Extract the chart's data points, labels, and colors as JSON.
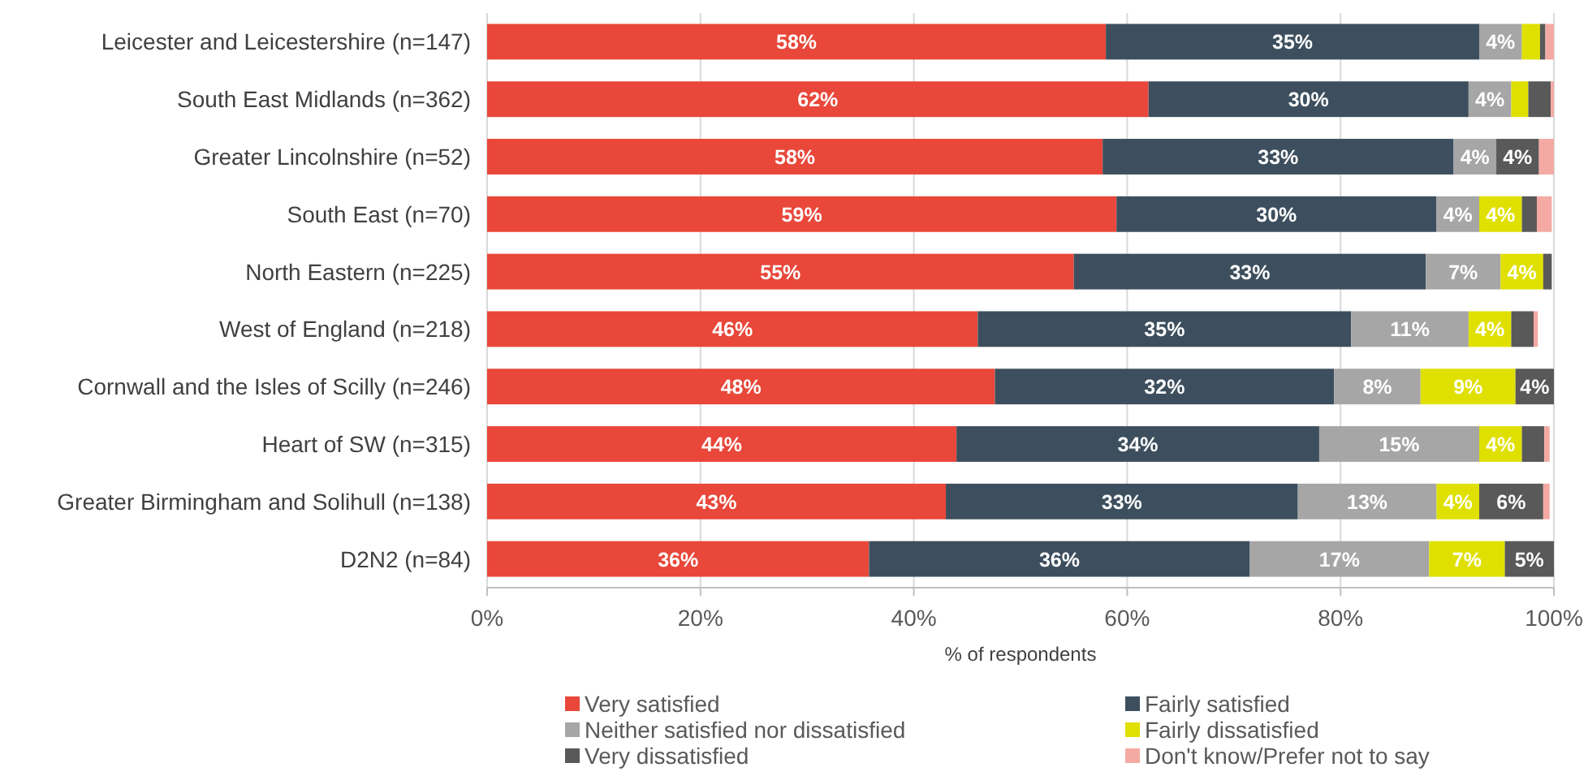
{
  "chart_data": {
    "type": "bar",
    "orientation": "horizontal",
    "stacked": true,
    "xlabel": "% of respondents",
    "categories": [
      "Leicester and Leicestershire (n=147)",
      "South East Midlands (n=362)",
      "Greater Lincolnshire (n=52)",
      "South East (n=70)",
      "North Eastern (n=225)",
      "West of England (n=218)",
      "Cornwall and the Isles of Scilly (n=246)",
      "Heart of SW (n=315)",
      "Greater Birmingham and Solihull (n=138)",
      "D2N2 (n=84)"
    ],
    "series": [
      {
        "name": "Very satisfied",
        "color": "#e8473a",
        "values": [
          58,
          62,
          57.7,
          59,
          55,
          46,
          47.6,
          44,
          43,
          35.8
        ],
        "value_labels": [
          "58%",
          "62%",
          "58%",
          "59%",
          "55%",
          "46%",
          "48%",
          "44%",
          "43%",
          "36%"
        ]
      },
      {
        "name": "Fairly satisfied",
        "color": "#3d4f5e",
        "values": [
          35,
          30,
          32.9,
          30,
          33,
          35,
          31.8,
          34,
          33,
          35.7
        ],
        "value_labels": [
          "35%",
          "30%",
          "33%",
          "30%",
          "33%",
          "35%",
          "32%",
          "34%",
          "33%",
          "36%"
        ]
      },
      {
        "name": "Neither satisfied nor dissatisfied",
        "color": "#a6a6a6",
        "values": [
          4,
          4,
          4,
          4,
          7,
          11,
          8.1,
          15,
          13,
          16.8
        ],
        "value_labels": [
          "4%",
          "4%",
          "4%",
          "4%",
          "7%",
          "11%",
          "8%",
          "15%",
          "13%",
          "17%"
        ]
      },
      {
        "name": "Fairly dissatisfied",
        "color": "#e0e000",
        "values": [
          1.7,
          1.6,
          0,
          4,
          4,
          4,
          8.9,
          4,
          4,
          7.1
        ],
        "value_labels": [
          null,
          null,
          null,
          "4%",
          "4%",
          "4%",
          "9%",
          "4%",
          "4%",
          "7%"
        ]
      },
      {
        "name": "Very dissatisfied",
        "color": "#595959",
        "values": [
          0.5,
          2.1,
          4,
          1.4,
          0.8,
          2.1,
          3.6,
          2.1,
          6,
          4.6
        ],
        "value_labels": [
          null,
          null,
          "4%",
          null,
          null,
          null,
          "4%",
          null,
          "6%",
          "5%"
        ]
      },
      {
        "name": "Don't know/Prefer not to say",
        "color": "#f4aaa3",
        "values": [
          0.8,
          0.3,
          1.4,
          1.4,
          0,
          0.4,
          0,
          0.5,
          0.6,
          0
        ],
        "value_labels": [
          null,
          null,
          null,
          null,
          null,
          null,
          null,
          null,
          null,
          null
        ]
      }
    ],
    "xlim": [
      0,
      100
    ],
    "xticks": [
      {
        "value": 0,
        "label": "0%"
      },
      {
        "value": 20,
        "label": "20%"
      },
      {
        "value": 40,
        "label": "40%"
      },
      {
        "value": 60,
        "label": "60%"
      },
      {
        "value": 80,
        "label": "80%"
      },
      {
        "value": 100,
        "label": "100%"
      }
    ],
    "grid": "x",
    "legend": "bottom"
  }
}
